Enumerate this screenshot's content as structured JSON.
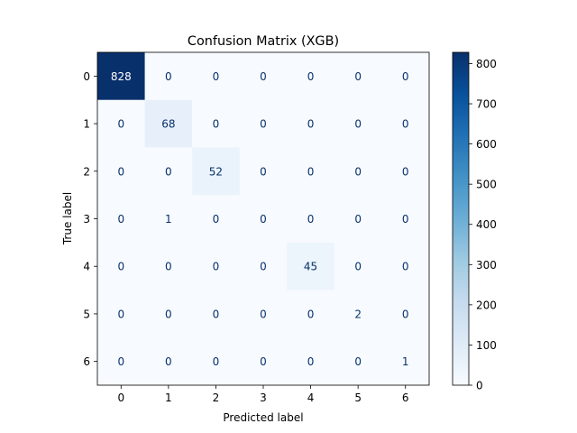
{
  "chart_data": {
    "type": "heatmap",
    "title": "Confusion Matrix (XGB)",
    "xlabel": "Predicted label",
    "ylabel": "True label",
    "x_categories": [
      "0",
      "1",
      "2",
      "3",
      "4",
      "5",
      "6"
    ],
    "y_categories": [
      "0",
      "1",
      "2",
      "3",
      "4",
      "5",
      "6"
    ],
    "matrix": [
      [
        828,
        0,
        0,
        0,
        0,
        0,
        0
      ],
      [
        0,
        68,
        0,
        0,
        0,
        0,
        0
      ],
      [
        0,
        0,
        52,
        0,
        0,
        0,
        0
      ],
      [
        0,
        1,
        0,
        0,
        0,
        0,
        0
      ],
      [
        0,
        0,
        0,
        0,
        45,
        0,
        0
      ],
      [
        0,
        0,
        0,
        0,
        0,
        2,
        0
      ],
      [
        0,
        0,
        0,
        0,
        0,
        0,
        1
      ]
    ],
    "colormap": "Blues",
    "vmin": 0,
    "vmax": 828,
    "colorbar_ticks": [
      0,
      100,
      200,
      300,
      400,
      500,
      600,
      700,
      800
    ],
    "colorbar_tick_labels": [
      "0",
      "100",
      "200",
      "300",
      "400",
      "500",
      "600",
      "700",
      "800"
    ],
    "colors": {
      "low": "#f7fbff",
      "high": "#08306b",
      "text_dark": "#08306b",
      "text_light": "#ffffff"
    },
    "grid": false
  }
}
